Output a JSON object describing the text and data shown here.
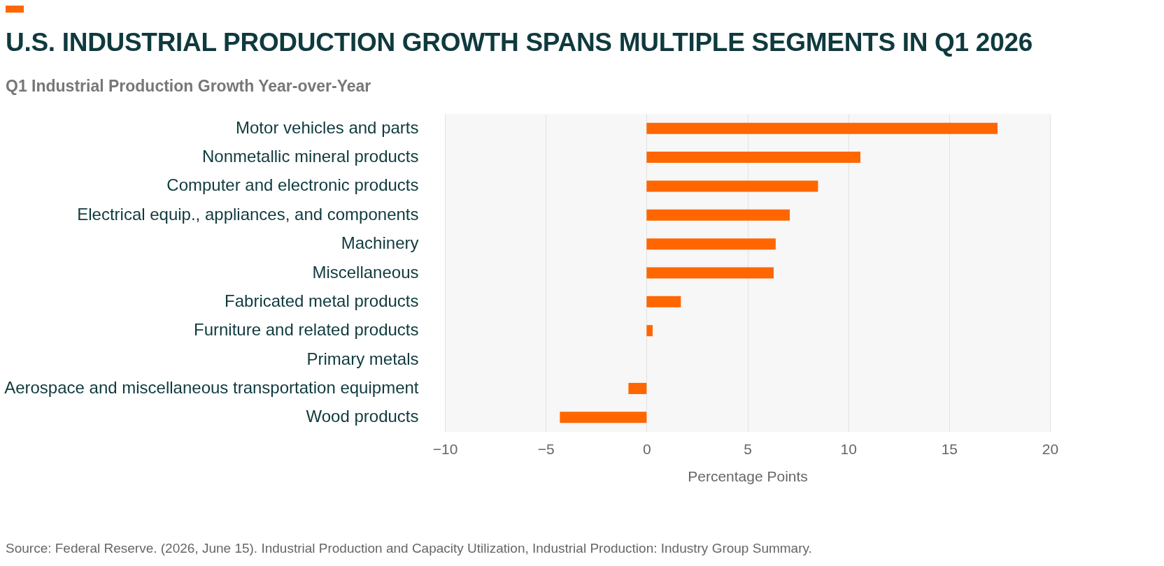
{
  "chart_data": {
    "type": "bar",
    "orientation": "horizontal",
    "title": "U.S. INDUSTRIAL PRODUCTION GROWTH SPANS MULTIPLE SEGMENTS IN Q1 2026",
    "subtitle": "Q1 Industrial Production Growth Year-over-Year",
    "xlabel": "Percentage Points",
    "categories": [
      "Motor vehicles and parts",
      "Nonmetallic mineral products",
      "Computer and electronic products",
      "Electrical equip., appliances, and components",
      "Machinery",
      "Miscellaneous",
      "Fabricated metal products",
      "Furniture and related products",
      "Primary metals",
      "Aerospace and miscellaneous transportation equipment",
      "Wood products"
    ],
    "values": [
      17.4,
      10.6,
      8.5,
      7.1,
      6.4,
      6.3,
      1.7,
      0.3,
      0,
      -0.9,
      -4.3
    ],
    "color": "#ff6600",
    "xlim": [
      -10,
      20
    ],
    "xticks": [
      -10,
      -5,
      0,
      5,
      10,
      15,
      20
    ],
    "grid": "x",
    "annotations": [
      "Source: Federal Reserve. (2026, June 15). Industrial Production and Capacity Utilization, Industrial Production: Industry Group Summary."
    ]
  }
}
